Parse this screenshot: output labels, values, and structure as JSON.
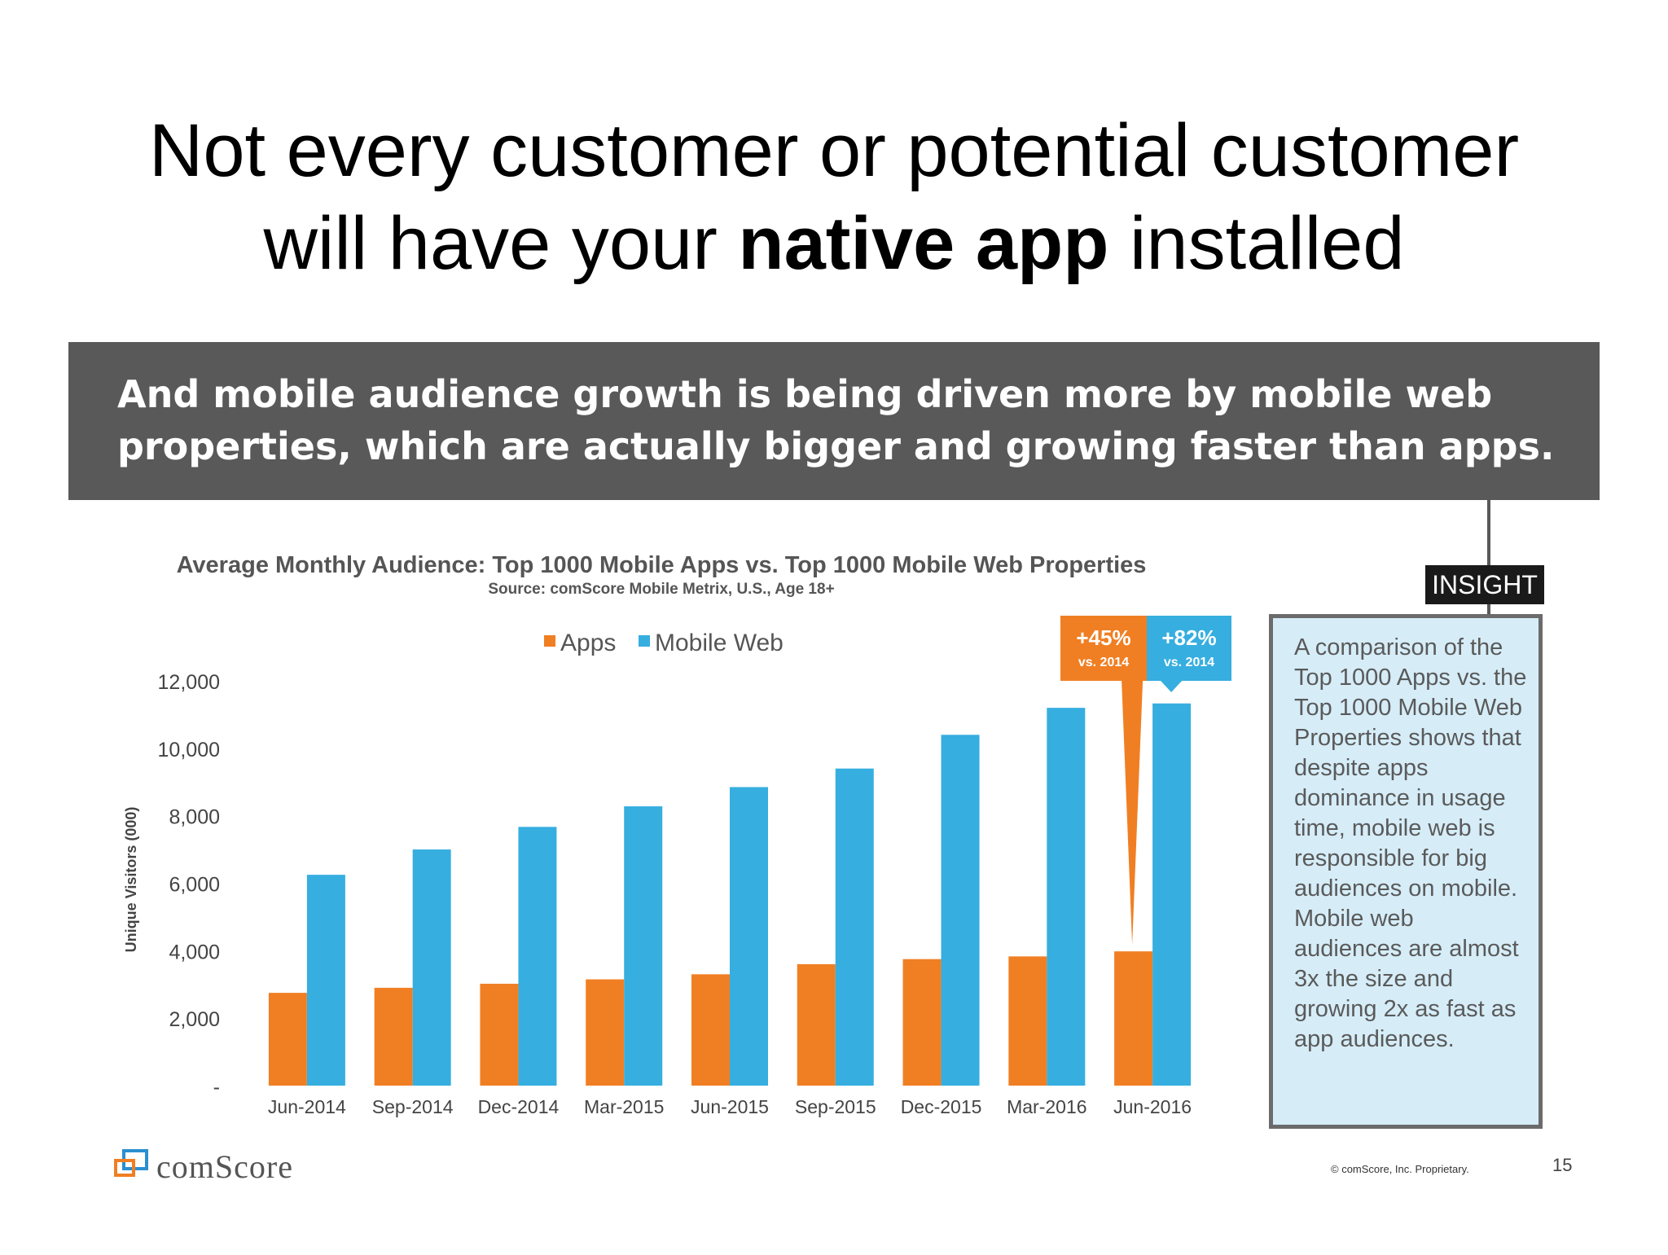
{
  "slide": {
    "title_line1": "Not every customer or potential customer",
    "title_line2_pre": "will have your ",
    "title_line2_bold": "native app",
    "title_line2_post": " installed"
  },
  "banner": {
    "line1": "And mobile audience growth is being driven more by mobile web",
    "line2": "properties, which are actually bigger and growing faster than apps.",
    "background_color": "#595959"
  },
  "insight": {
    "label": "INSIGHT",
    "text": "A comparison of the Top 1000 Apps vs. the Top 1000 Mobile Web Properties shows that despite apps dominance in usage time, mobile web is responsible for big audiences on mobile. Mobile web audiences are almost 3x the size and growing 2x as fast as app audiences."
  },
  "callouts": [
    {
      "value": "+45%",
      "sub": "vs. 2014",
      "color": "#f07f23"
    },
    {
      "value": "+82%",
      "sub": "vs. 2014",
      "color": "#36aee0"
    }
  ],
  "footer": {
    "logo_text": "comScore",
    "copyright": "© comScore, Inc. Proprietary.",
    "page_number": "15"
  },
  "chart_data": {
    "type": "bar",
    "title": "Average Monthly Audience: Top 1000 Mobile Apps vs. Top 1000 Mobile Web Properties",
    "subtitle": "Source: comScore Mobile Metrix, U.S., Age 18+",
    "xlabel": "",
    "ylabel": "Unique Visitors (000)",
    "ylim": [
      0,
      12000
    ],
    "yticks": [
      0,
      2000,
      4000,
      6000,
      8000,
      10000,
      12000
    ],
    "ytick_labels": [
      "-",
      "2,000",
      "4,000",
      "6,000",
      "8,000",
      "10,000",
      "12,000"
    ],
    "grid": false,
    "legend_position": "top",
    "categories": [
      "Jun-2014",
      "Sep-2014",
      "Dec-2014",
      "Mar-2015",
      "Jun-2015",
      "Sep-2015",
      "Dec-2015",
      "Mar-2016",
      "Jun-2016"
    ],
    "series": [
      {
        "name": "Apps",
        "color": "#f07f23",
        "values": [
          2750,
          2900,
          3020,
          3150,
          3300,
          3600,
          3750,
          3830,
          3980
        ]
      },
      {
        "name": "Mobile Web",
        "color": "#36aee0",
        "values": [
          6250,
          7000,
          7670,
          8280,
          8850,
          9400,
          10400,
          11200,
          11330
        ]
      }
    ]
  }
}
